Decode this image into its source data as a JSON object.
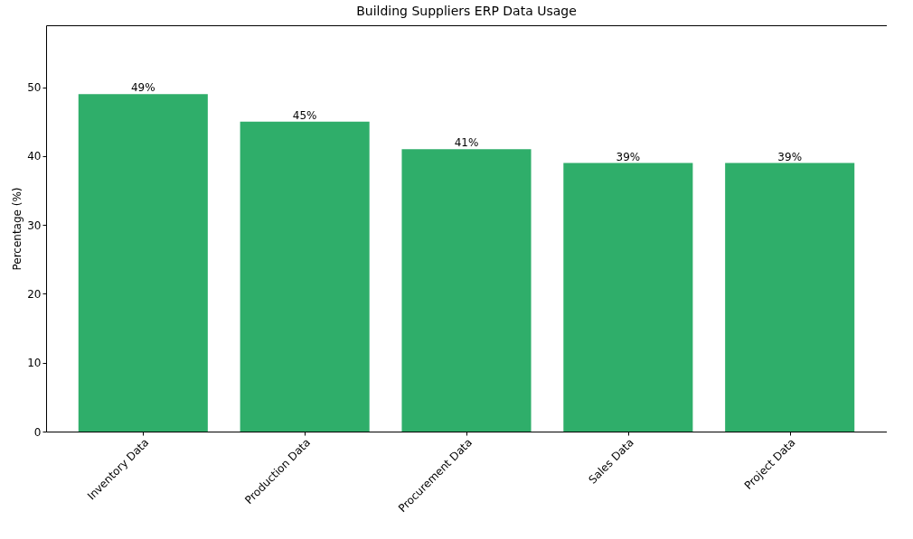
{
  "chart_data": {
    "type": "bar",
    "title": "Building Suppliers ERP Data Usage",
    "ylabel": "Percentage (%)",
    "categories": [
      "Inventory Data",
      "Production Data",
      "Procurement Data",
      "Sales Data",
      "Project Data"
    ],
    "values": [
      49,
      45,
      41,
      39,
      39
    ],
    "value_labels": [
      "49%",
      "45%",
      "41%",
      "39%",
      "39%"
    ],
    "color": "#2fae6a",
    "ylim": [
      0,
      59
    ],
    "yticks": [
      0,
      10,
      20,
      30,
      40,
      50
    ],
    "grid": false
  }
}
